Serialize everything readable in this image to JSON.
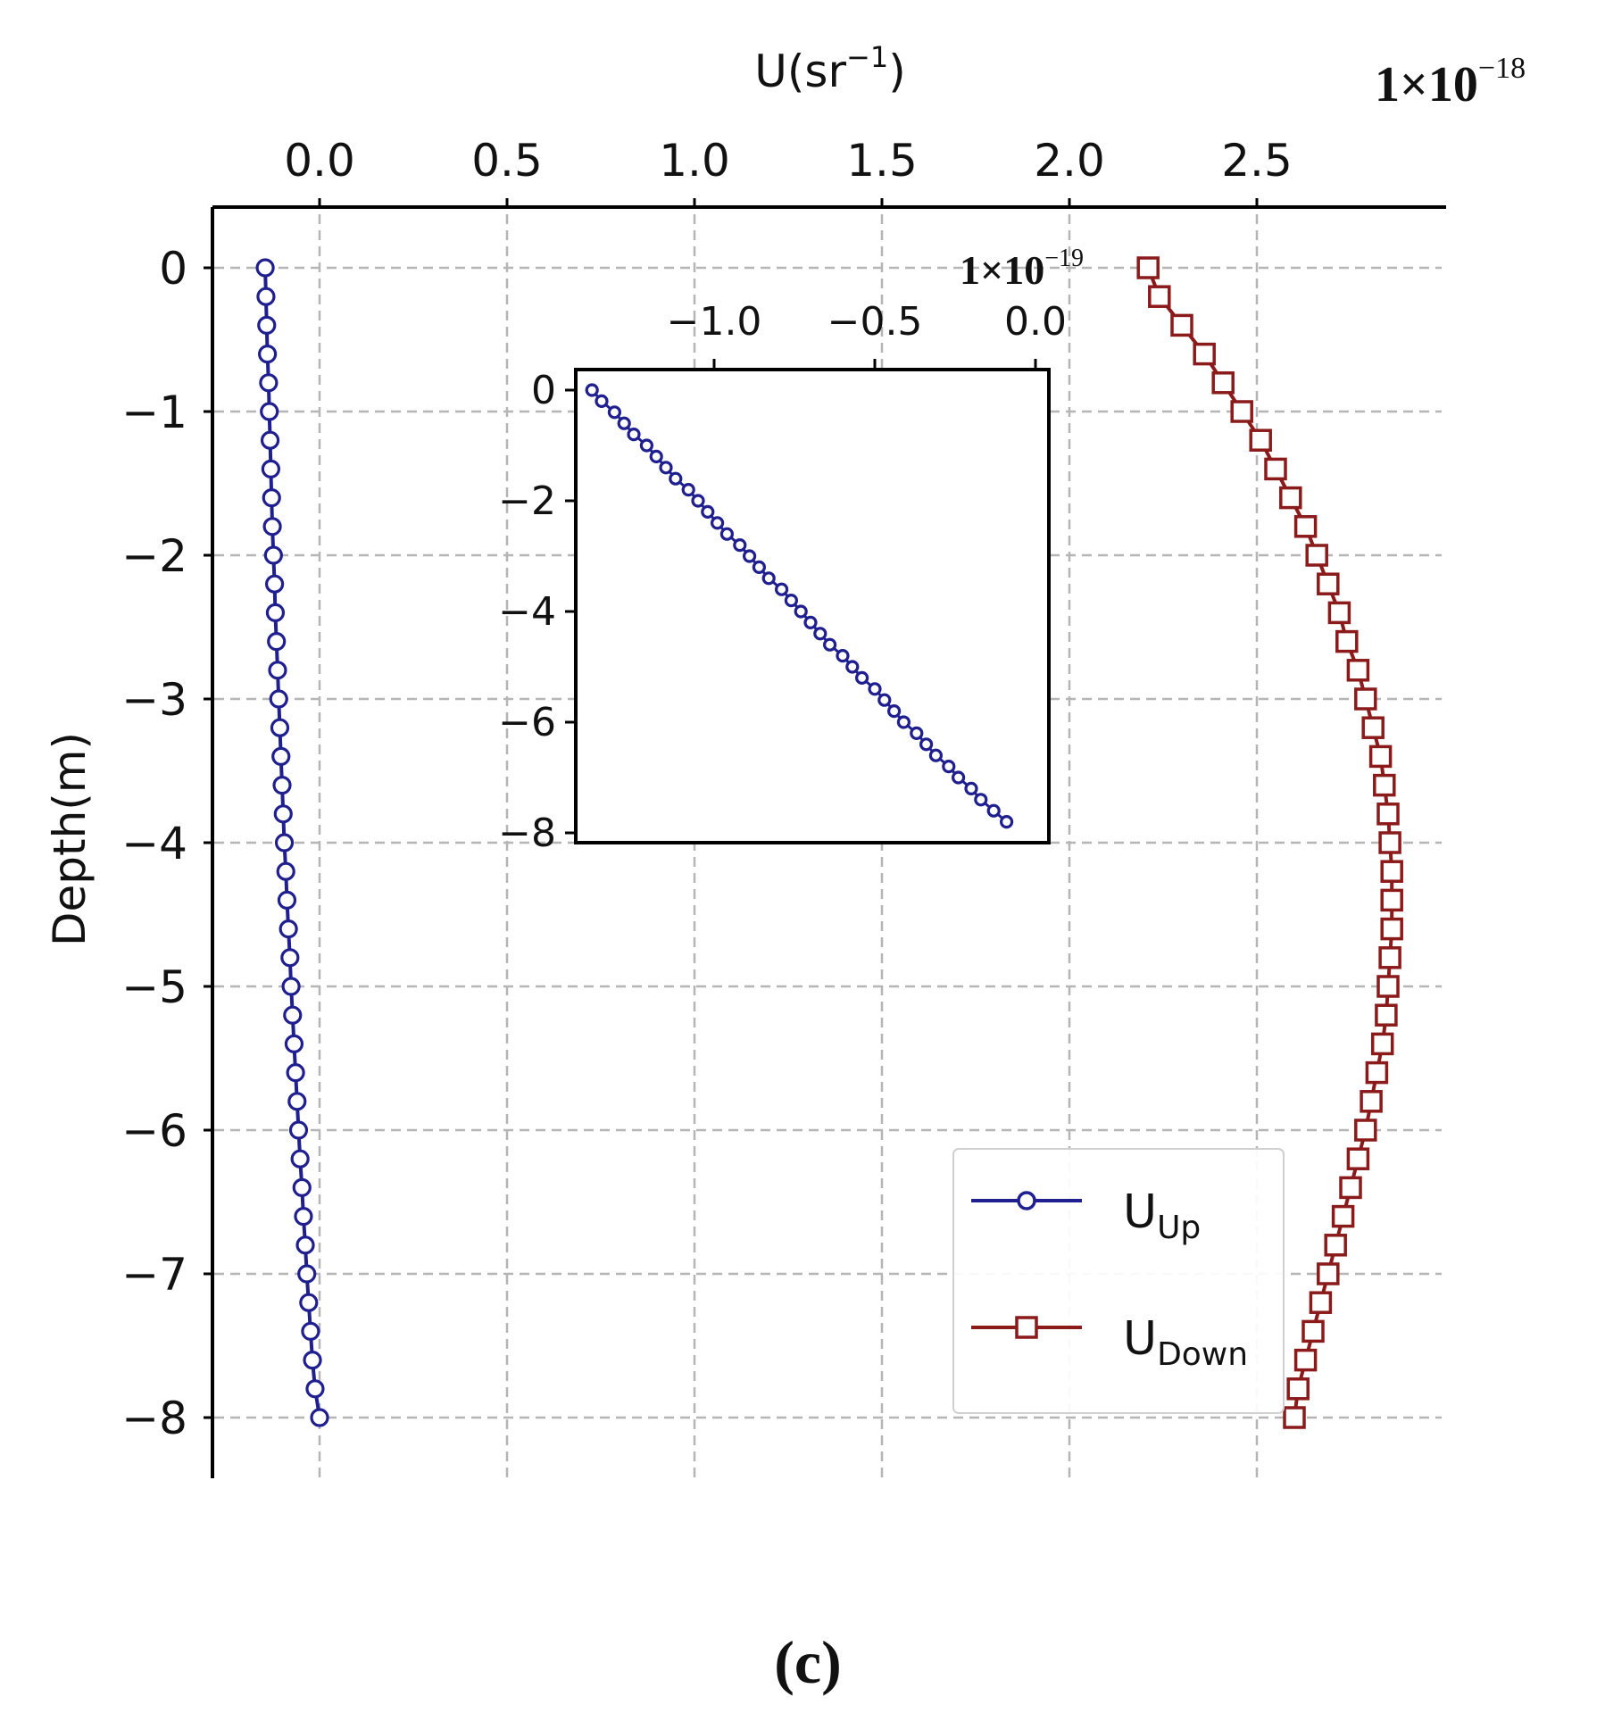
{
  "chart_data": [
    {
      "type": "line",
      "role": "main",
      "xlabel": "U(sr",
      "xlabel_sup": "−1",
      "xlabel_close": ")",
      "ylabel": "Depth(m)",
      "exponent": {
        "base": "1×10",
        "power": "−18"
      },
      "xlim": [
        -0.3,
        3.0
      ],
      "ylim": [
        -8.4,
        0.4
      ],
      "x_ticks": [
        0.0,
        0.5,
        1.0,
        1.5,
        2.0,
        2.5
      ],
      "x_tick_labels": [
        "0.0",
        "0.5",
        "1.0",
        "1.5",
        "2.0",
        "2.5"
      ],
      "y_ticks": [
        0,
        -1,
        -2,
        -3,
        -4,
        -5,
        -6,
        -7,
        -8
      ],
      "y_tick_labels": [
        "0",
        "−1",
        "−2",
        "−3",
        "−4",
        "−5",
        "−6",
        "−7",
        "−8"
      ],
      "grid": true,
      "legend_position": "lower-right",
      "series": [
        {
          "name": "U",
          "subscript": "Up",
          "color": "#1f1f8f",
          "marker": "circle",
          "depth": [
            0,
            -0.2,
            -0.4,
            -0.6,
            -0.8,
            -1,
            -1.2,
            -1.4,
            -1.6,
            -1.8,
            -2,
            -2.2,
            -2.4,
            -2.6,
            -2.8,
            -3,
            -3.2,
            -3.4,
            -3.6,
            -3.8,
            -4,
            -4.2,
            -4.4,
            -4.6,
            -4.8,
            -5,
            -5.2,
            -5.4,
            -5.6,
            -5.8,
            -6,
            -6.2,
            -6.4,
            -6.6,
            -6.8,
            -7,
            -7.2,
            -7.4,
            -7.6,
            -7.8,
            -8
          ],
          "values": [
            -0.145,
            -0.143,
            -0.141,
            -0.139,
            -0.136,
            -0.134,
            -0.132,
            -0.13,
            -0.128,
            -0.126,
            -0.123,
            -0.12,
            -0.118,
            -0.115,
            -0.112,
            -0.109,
            -0.106,
            -0.103,
            -0.1,
            -0.097,
            -0.094,
            -0.09,
            -0.087,
            -0.083,
            -0.079,
            -0.076,
            -0.072,
            -0.068,
            -0.064,
            -0.06,
            -0.056,
            -0.052,
            -0.047,
            -0.043,
            -0.038,
            -0.034,
            -0.029,
            -0.024,
            -0.019,
            -0.012,
            0.0
          ]
        },
        {
          "name": "U",
          "subscript": "Down",
          "color": "#8b1a1a",
          "marker": "square",
          "depth": [
            0,
            -0.2,
            -0.4,
            -0.6,
            -0.8,
            -1,
            -1.2,
            -1.4,
            -1.6,
            -1.8,
            -2,
            -2.2,
            -2.4,
            -2.6,
            -2.8,
            -3,
            -3.2,
            -3.4,
            -3.6,
            -3.8,
            -4,
            -4.2,
            -4.4,
            -4.6,
            -4.8,
            -5,
            -5.2,
            -5.4,
            -5.6,
            -5.8,
            -6,
            -6.2,
            -6.4,
            -6.6,
            -6.8,
            -7,
            -7.2,
            -7.4,
            -7.6,
            -7.8,
            -8
          ],
          "values": [
            2.21,
            2.24,
            2.3,
            2.36,
            2.41,
            2.46,
            2.51,
            2.55,
            2.59,
            2.63,
            2.66,
            2.69,
            2.72,
            2.74,
            2.77,
            2.79,
            2.81,
            2.83,
            2.84,
            2.85,
            2.855,
            2.86,
            2.86,
            2.86,
            2.855,
            2.85,
            2.845,
            2.835,
            2.82,
            2.805,
            2.79,
            2.77,
            2.75,
            2.73,
            2.71,
            2.69,
            2.67,
            2.65,
            2.63,
            2.61,
            2.6
          ]
        }
      ]
    },
    {
      "type": "line",
      "role": "inset",
      "exponent": {
        "base": "1×10",
        "power": "−19"
      },
      "xlim": [
        -1.45,
        0.05
      ],
      "ylim": [
        -8.1,
        0.3
      ],
      "x_ticks": [
        -1.0,
        -0.5,
        0.0
      ],
      "x_tick_labels": [
        "−1.0",
        "−0.5",
        "0.0"
      ],
      "y_ticks": [
        0,
        -2,
        -4,
        -6,
        -8
      ],
      "y_tick_labels": [
        "0",
        "−2",
        "−4",
        "−6",
        "−8"
      ],
      "grid": false,
      "series": [
        {
          "name": "UUp",
          "color": "#1f1f8f",
          "marker": "circle",
          "depth": [
            0,
            -0.2,
            -0.4,
            -0.6,
            -0.8,
            -1,
            -1.2,
            -1.4,
            -1.6,
            -1.8,
            -2,
            -2.2,
            -2.4,
            -2.6,
            -2.8,
            -3,
            -3.2,
            -3.4,
            -3.6,
            -3.8,
            -4,
            -4.2,
            -4.4,
            -4.6,
            -4.8,
            -5,
            -5.2,
            -5.4,
            -5.6,
            -5.8,
            -6,
            -6.2,
            -6.4,
            -6.6,
            -6.8,
            -7,
            -7.2,
            -7.4,
            -7.6,
            -7.8
          ],
          "values": [
            -1.38,
            -1.35,
            -1.31,
            -1.28,
            -1.25,
            -1.21,
            -1.18,
            -1.15,
            -1.12,
            -1.08,
            -1.05,
            -1.02,
            -0.99,
            -0.96,
            -0.92,
            -0.89,
            -0.86,
            -0.83,
            -0.79,
            -0.76,
            -0.73,
            -0.7,
            -0.67,
            -0.64,
            -0.6,
            -0.57,
            -0.54,
            -0.5,
            -0.47,
            -0.44,
            -0.41,
            -0.37,
            -0.34,
            -0.31,
            -0.27,
            -0.24,
            -0.2,
            -0.17,
            -0.13,
            -0.09
          ]
        }
      ]
    }
  ],
  "caption": {
    "open": "(",
    "letter": "c",
    "close": ")"
  }
}
